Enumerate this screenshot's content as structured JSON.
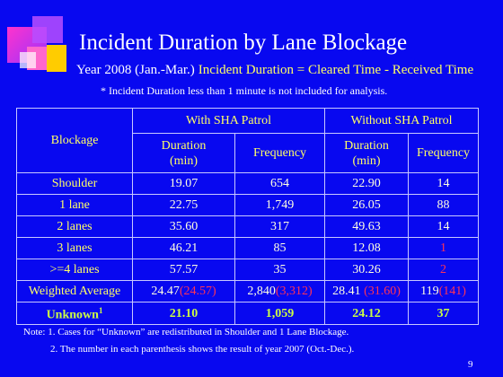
{
  "title": "Incident Duration by Lane Blockage",
  "subtitle": {
    "period": "Year 2008 (Jan.-Mar.)",
    "definition": "Incident Duration = Cleared Time - Received Time"
  },
  "scope_note": "* Incident Duration less than 1 minute is not included for analysis.",
  "table": {
    "row_header": "Blockage",
    "group_headers": [
      "With SHA Patrol",
      "Without SHA Patrol"
    ],
    "sub_headers": [
      [
        "Duration",
        "(min)"
      ],
      [
        "Frequency"
      ],
      [
        "Duration",
        "(min)"
      ],
      [
        "Frequency"
      ]
    ],
    "rows": [
      {
        "blockage": "Shoulder",
        "cells": [
          "19.07",
          "654",
          "22.90",
          "14"
        ]
      },
      {
        "blockage": "1 lane",
        "cells": [
          "22.75",
          "1,749",
          "26.05",
          "88"
        ]
      },
      {
        "blockage": "2 lanes",
        "cells": [
          "35.60",
          "317",
          "49.63",
          "14"
        ]
      },
      {
        "blockage": "3 lanes",
        "cells": [
          "46.21",
          "85",
          "12.08",
          "1"
        ]
      },
      {
        "blockage": ">=4 lanes",
        "cells": [
          "57.57",
          "35",
          "30.26",
          "2"
        ]
      }
    ],
    "weighted_average": {
      "label": "Weighted Average",
      "cells": [
        [
          "24.47",
          "(24.57)"
        ],
        [
          "2,840",
          "(3,312)"
        ],
        [
          "28.41",
          "(31.60)"
        ],
        [
          "119",
          "(141)"
        ]
      ]
    },
    "unknown": {
      "label": "Unknown",
      "footnote_mark": "1",
      "cells": [
        "21.10",
        "1,059",
        "24.12",
        "37"
      ]
    }
  },
  "notes": [
    "Note: 1. Cases for “Unknown” are redistributed in Shoulder and 1 Lane Blockage.",
    "2. The number in each parenthesis shows the result of year 2007 (Oct.-Dec.)."
  ],
  "page_number": "9"
}
